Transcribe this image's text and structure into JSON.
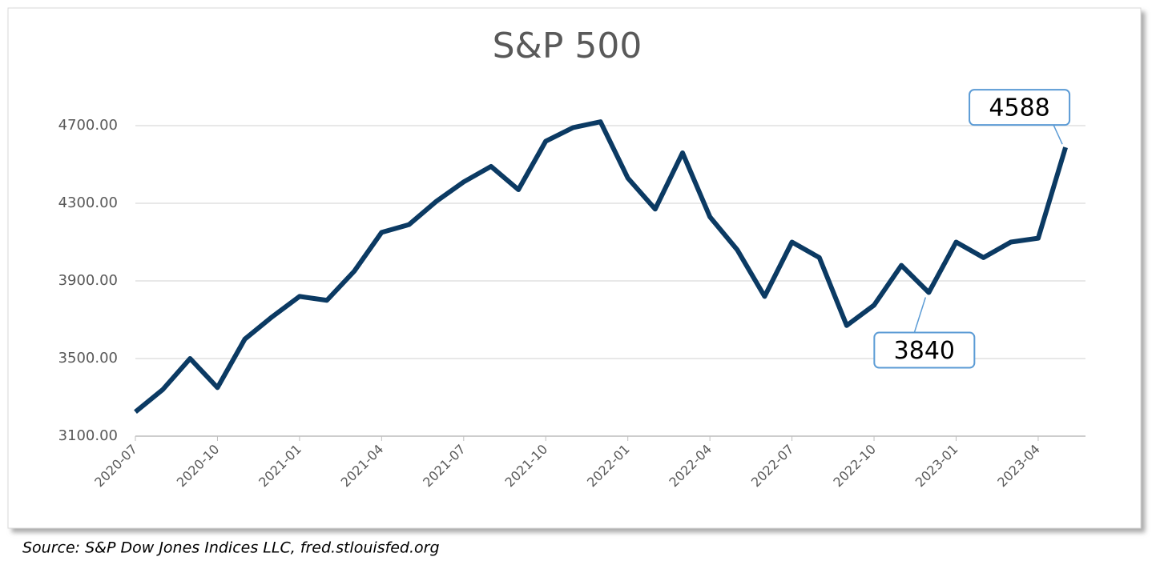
{
  "chart_data": {
    "type": "line",
    "title": "S&P 500",
    "source": "Source: S&P Dow Jones Indices LLC, fred.stlouisfed.org",
    "categories": [
      "2020-07",
      null,
      null,
      "2020-10",
      null,
      null,
      "2021-01",
      null,
      null,
      "2021-04",
      null,
      null,
      "2021-07",
      null,
      null,
      "2021-10",
      null,
      null,
      "2022-01",
      null,
      null,
      "2022-04",
      null,
      null,
      "2022-07",
      null,
      null,
      "2022-10",
      null,
      null,
      "2023-01",
      null,
      null,
      "2023-04",
      null
    ],
    "series": [
      {
        "name": "S&P 500",
        "color": "#0b3a63",
        "values": [
          3225,
          3340,
          3500,
          3350,
          3600,
          3715,
          3820,
          3800,
          3950,
          4150,
          4190,
          4310,
          4410,
          4490,
          4370,
          4620,
          4690,
          4720,
          4430,
          4270,
          4560,
          4230,
          4060,
          3820,
          4100,
          4020,
          3670,
          3775,
          3980,
          3840,
          4100,
          4020,
          4100,
          4120,
          4588
        ]
      }
    ],
    "ylim": [
      3100,
      4700
    ],
    "yticks": [
      {
        "value": 3100,
        "label": "3100.00"
      },
      {
        "value": 3500,
        "label": "3500.00"
      },
      {
        "value": 3900,
        "label": "3900.00"
      },
      {
        "value": 4300,
        "label": "4300.00"
      },
      {
        "value": 4700,
        "label": "4700.00"
      }
    ],
    "grid": true,
    "annotations": [
      {
        "value": 4588
      },
      {
        "value": 3840
      }
    ]
  }
}
